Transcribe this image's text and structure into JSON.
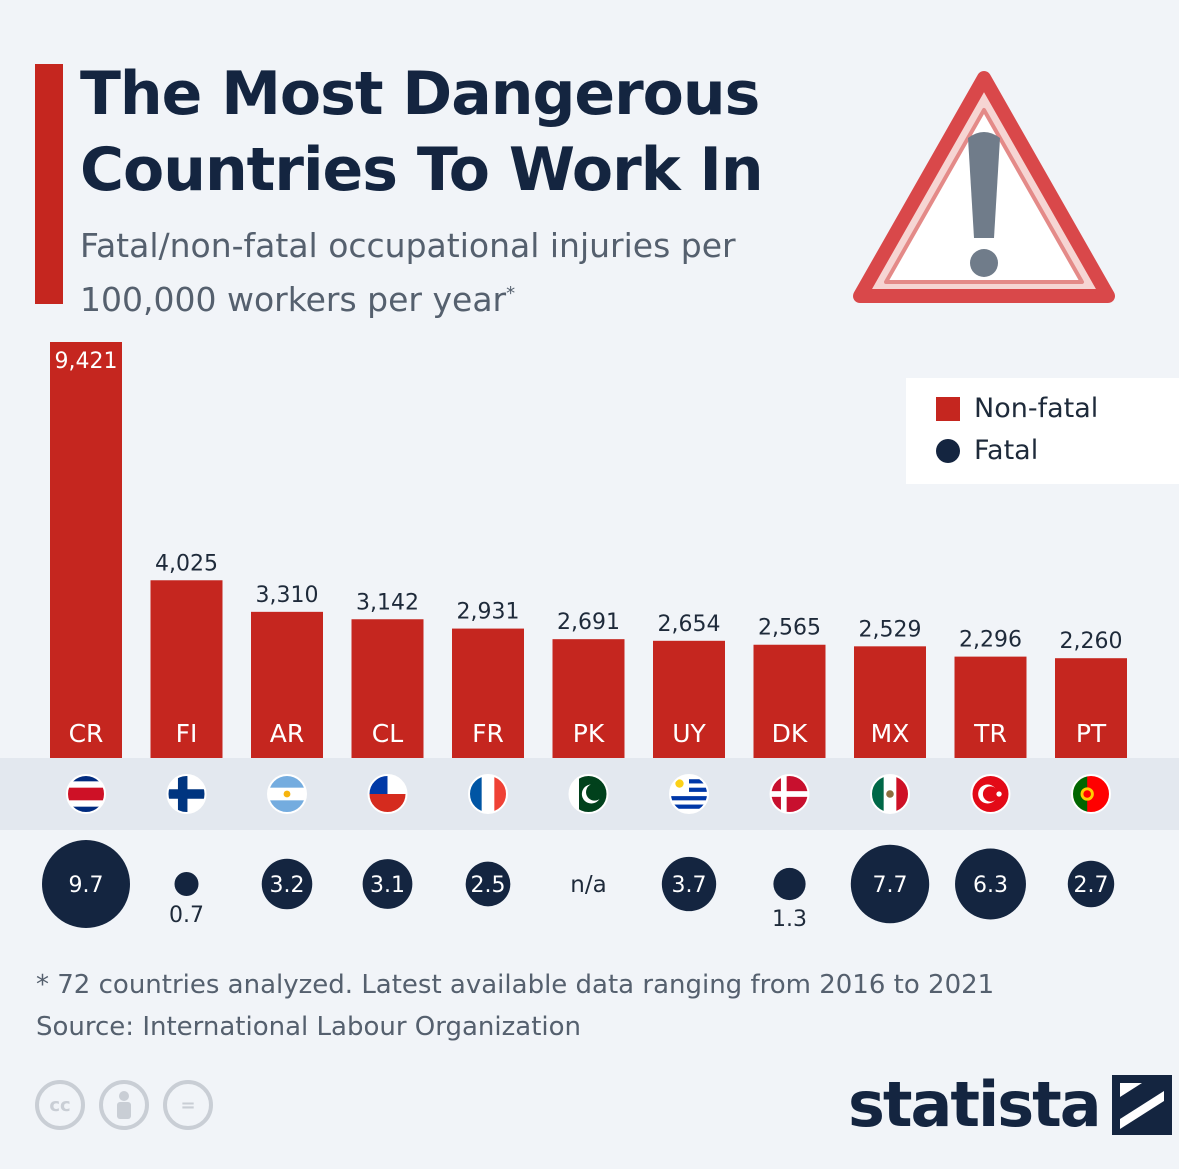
{
  "header": {
    "title": "The Most Dangerous Countries To Work In",
    "subtitle": "Fatal/non-fatal occupational injuries per 100,000 workers per year",
    "subtitle_mark": "*"
  },
  "legend": {
    "nonfatal_label": "Non-fatal",
    "fatal_label": "Fatal"
  },
  "colors": {
    "nonfatal": "#c5261f",
    "fatal": "#142540",
    "background": "#f1f4f8",
    "flag_band": "#e3e8ef"
  },
  "chart_data": {
    "type": "bar",
    "categories": [
      "CR",
      "FI",
      "AR",
      "CL",
      "FR",
      "PK",
      "UY",
      "DK",
      "MX",
      "TR",
      "PT"
    ],
    "series": [
      {
        "name": "Non-fatal",
        "values": [
          9421,
          4025,
          3310,
          3142,
          2931,
          2691,
          2654,
          2565,
          2529,
          2296,
          2260
        ],
        "labels": [
          "9,421",
          "4,025",
          "3,310",
          "3,142",
          "2,931",
          "2,691",
          "2,654",
          "2,565",
          "2,529",
          "2,296",
          "2,260"
        ]
      },
      {
        "name": "Fatal",
        "values": [
          9.7,
          0.7,
          3.2,
          3.1,
          2.5,
          null,
          3.7,
          1.3,
          7.7,
          6.3,
          2.7
        ],
        "labels": [
          "9.7",
          "0.7",
          "3.2",
          "3.1",
          "2.5",
          "n/a",
          "3.7",
          "1.3",
          "7.7",
          "6.3",
          "2.7"
        ]
      }
    ],
    "ylim": [
      0,
      9421
    ]
  },
  "footer": {
    "note": "* 72 countries analyzed. Latest available data ranging from 2016 to 2021",
    "source": "Source: International Labour Organization",
    "brand": "statista",
    "license_icons": [
      "cc-icon",
      "by-icon",
      "nd-icon"
    ],
    "cc_label": "cc",
    "nd_label": "="
  }
}
